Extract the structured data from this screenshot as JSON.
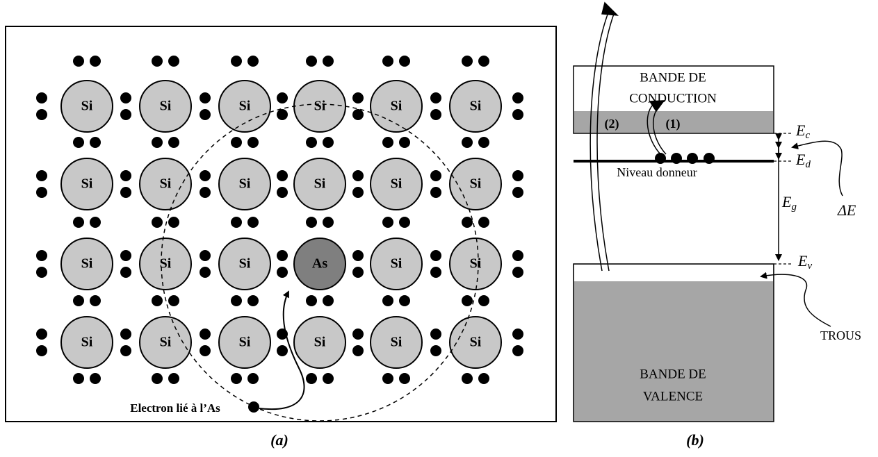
{
  "panel_a": {
    "atoms": [
      {
        "label": "Si",
        "color": "#c8c8c8"
      },
      {
        "label": "Si",
        "color": "#c8c8c8"
      },
      {
        "label": "Si",
        "color": "#c8c8c8"
      },
      {
        "label": "Si",
        "color": "#c8c8c8"
      },
      {
        "label": "Si",
        "color": "#c8c8c8"
      },
      {
        "label": "Si",
        "color": "#c8c8c8"
      },
      {
        "label": "Si",
        "color": "#c8c8c8"
      },
      {
        "label": "Si",
        "color": "#c8c8c8"
      },
      {
        "label": "Si",
        "color": "#c8c8c8"
      },
      {
        "label": "Si",
        "color": "#c8c8c8"
      },
      {
        "label": "Si",
        "color": "#c8c8c8"
      },
      {
        "label": "Si",
        "color": "#c8c8c8"
      },
      {
        "label": "Si",
        "color": "#c8c8c8"
      },
      {
        "label": "Si",
        "color": "#c8c8c8"
      },
      {
        "label": "Si",
        "color": "#c8c8c8"
      },
      {
        "label": "As",
        "color": "#7f7f7f"
      },
      {
        "label": "Si",
        "color": "#c8c8c8"
      },
      {
        "label": "Si",
        "color": "#c8c8c8"
      },
      {
        "label": "Si",
        "color": "#c8c8c8"
      },
      {
        "label": "Si",
        "color": "#c8c8c8"
      },
      {
        "label": "Si",
        "color": "#c8c8c8"
      },
      {
        "label": "Si",
        "color": "#c8c8c8"
      },
      {
        "label": "Si",
        "color": "#c8c8c8"
      },
      {
        "label": "Si",
        "color": "#c8c8c8"
      }
    ],
    "electron_label": "Electron lié à l’As",
    "caption": "(a)"
  },
  "panel_b": {
    "conduction_band": [
      "BANDE DE",
      "CONDUCTION"
    ],
    "transition_2": "(2)",
    "transition_1": "(1)",
    "donor_level": "Niveau donneur",
    "Ec": {
      "symbol": "E",
      "sub": "c"
    },
    "Ed": {
      "symbol": "E",
      "sub": "d"
    },
    "Eg": {
      "symbol": "E",
      "sub": "g"
    },
    "delta_E": "ΔE",
    "Ev": {
      "symbol": "E",
      "sub": "v"
    },
    "holes": "TROUS",
    "valence_band": [
      "BANDE DE",
      "VALENCE"
    ],
    "caption": "(b)"
  }
}
